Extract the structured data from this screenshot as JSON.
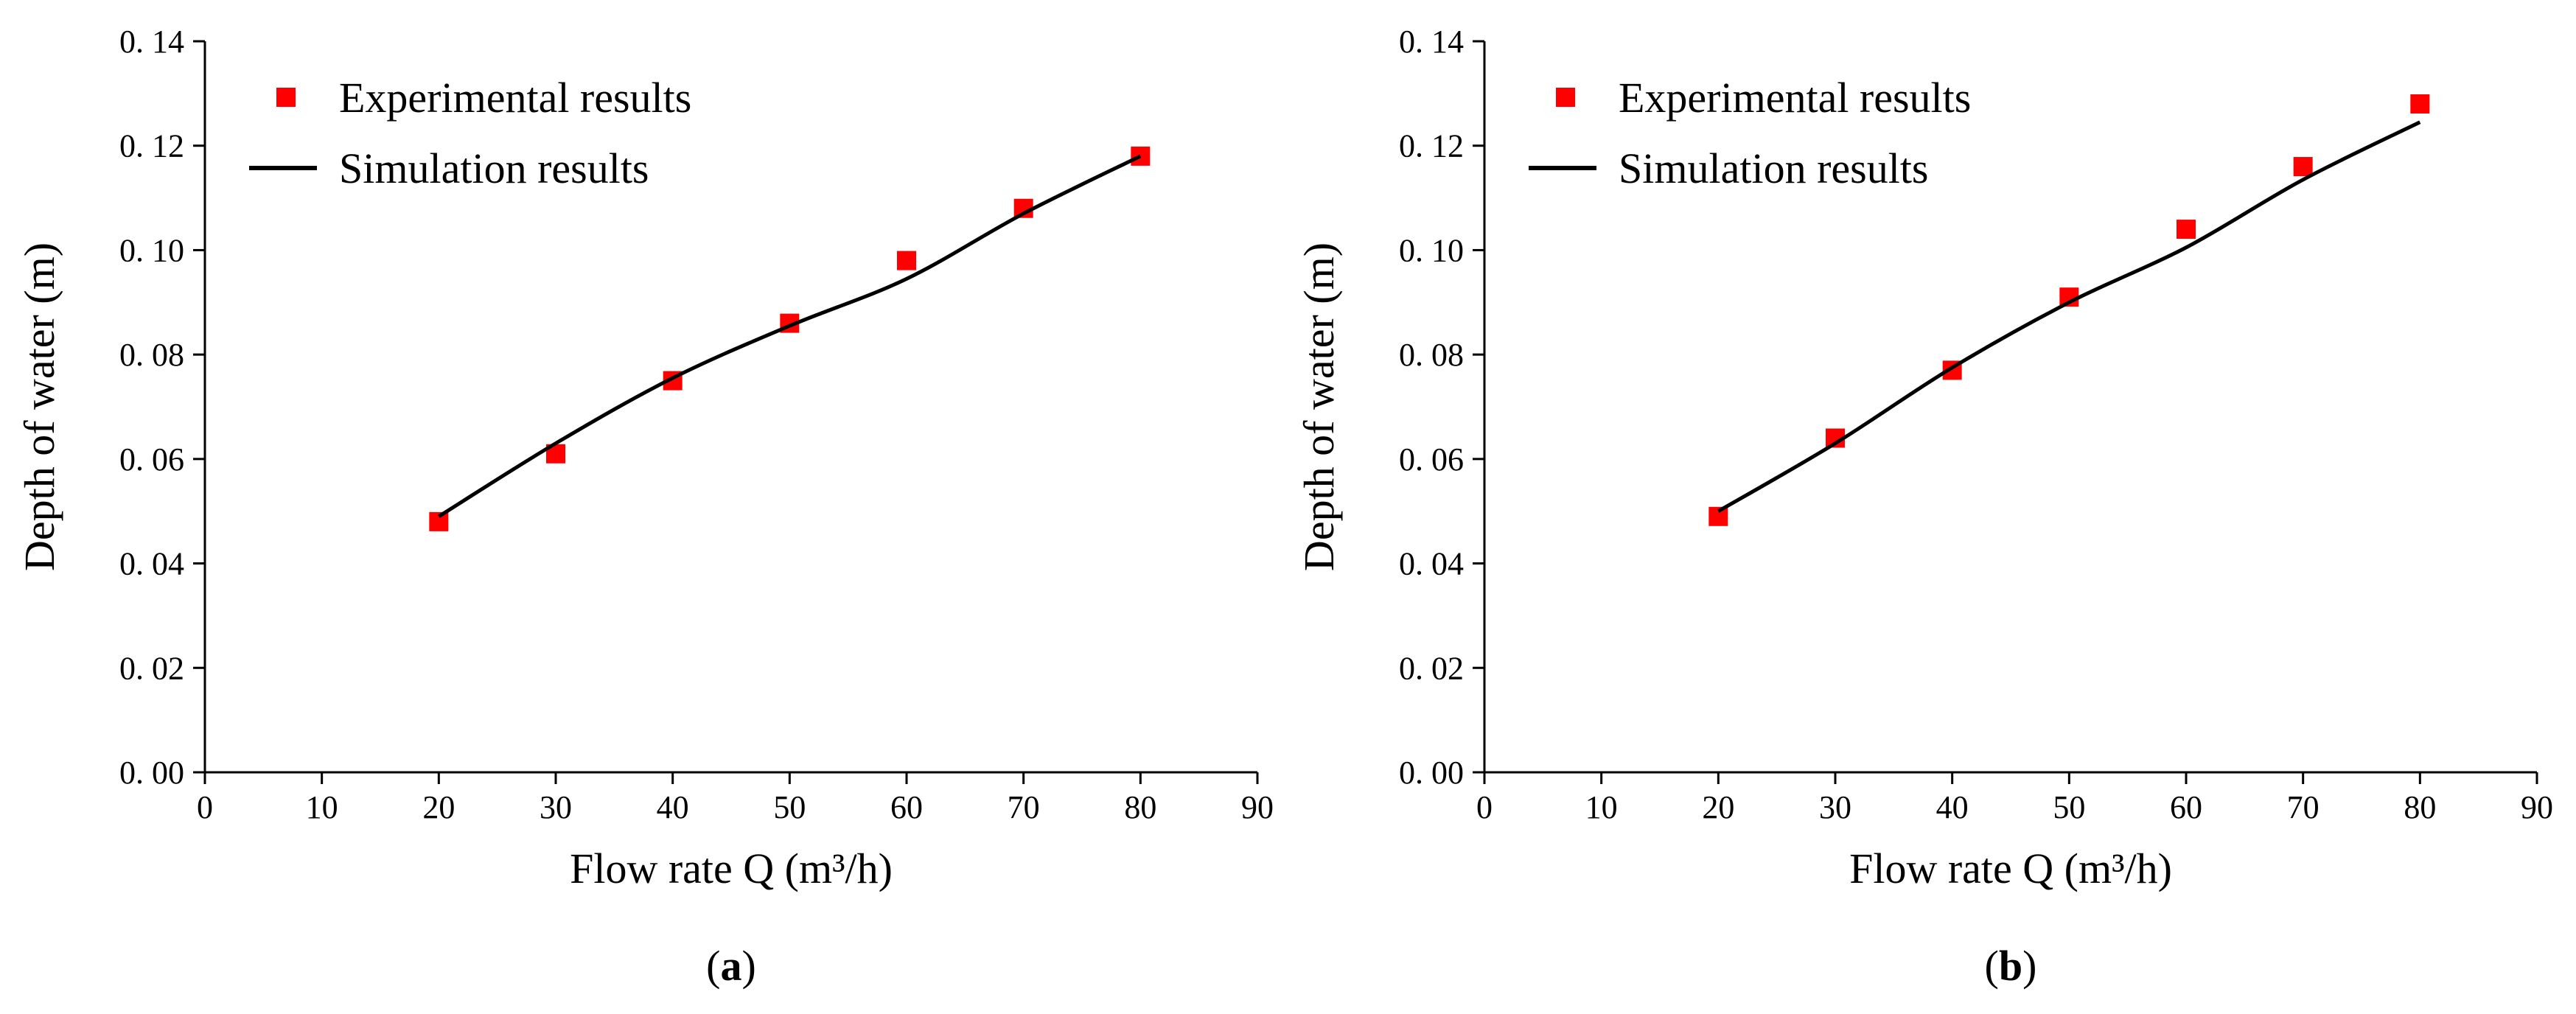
{
  "chart_data": [
    {
      "type": "line",
      "panel_label": "(a)",
      "xlabel": "Flow rate Q (m³/h)",
      "ylabel": "Depth of water (m)",
      "xlim": [
        0,
        90
      ],
      "ylim": [
        0,
        0.14
      ],
      "x_ticks": [
        0,
        10,
        20,
        30,
        40,
        50,
        60,
        70,
        80,
        90
      ],
      "y_ticks": [
        0.0,
        0.02,
        0.04,
        0.06,
        0.08,
        0.1,
        0.12,
        0.14
      ],
      "y_tick_labels": [
        "0. 00",
        "0. 02",
        "0. 04",
        "0. 06",
        "0. 08",
        "0. 10",
        "0. 12",
        "0. 14"
      ],
      "legend_position": "top-left",
      "series": [
        {
          "name": "Experimental results",
          "kind": "scatter",
          "marker": "square",
          "color": "#ff0000",
          "x": [
            20,
            30,
            40,
            50,
            60,
            70,
            80
          ],
          "y": [
            0.048,
            0.061,
            0.075,
            0.086,
            0.098,
            0.108,
            0.118
          ]
        },
        {
          "name": "Simulation results",
          "kind": "line",
          "color": "#000000",
          "x": [
            20,
            30,
            40,
            50,
            60,
            70,
            80
          ],
          "y": [
            0.049,
            0.063,
            0.0755,
            0.0855,
            0.0945,
            0.107,
            0.118
          ]
        }
      ]
    },
    {
      "type": "line",
      "panel_label": "(b)",
      "xlabel": "Flow rate Q (m³/h)",
      "ylabel": "Depth of water (m)",
      "xlim": [
        0,
        90
      ],
      "ylim": [
        0,
        0.14
      ],
      "x_ticks": [
        0,
        10,
        20,
        30,
        40,
        50,
        60,
        70,
        80,
        90
      ],
      "y_ticks": [
        0.0,
        0.02,
        0.04,
        0.06,
        0.08,
        0.1,
        0.12,
        0.14
      ],
      "y_tick_labels": [
        "0. 00",
        "0. 02",
        "0. 04",
        "0. 06",
        "0. 08",
        "0. 10",
        "0. 12",
        "0. 14"
      ],
      "legend_position": "top-left",
      "series": [
        {
          "name": "Experimental results",
          "kind": "scatter",
          "marker": "square",
          "color": "#ff0000",
          "x": [
            20,
            30,
            40,
            50,
            60,
            70,
            80
          ],
          "y": [
            0.049,
            0.064,
            0.077,
            0.091,
            0.104,
            0.116,
            0.128
          ]
        },
        {
          "name": "Simulation results",
          "kind": "line",
          "color": "#000000",
          "x": [
            20,
            30,
            40,
            50,
            60,
            70,
            80
          ],
          "y": [
            0.05,
            0.063,
            0.0775,
            0.09,
            0.1005,
            0.1135,
            0.1245
          ]
        }
      ]
    }
  ]
}
